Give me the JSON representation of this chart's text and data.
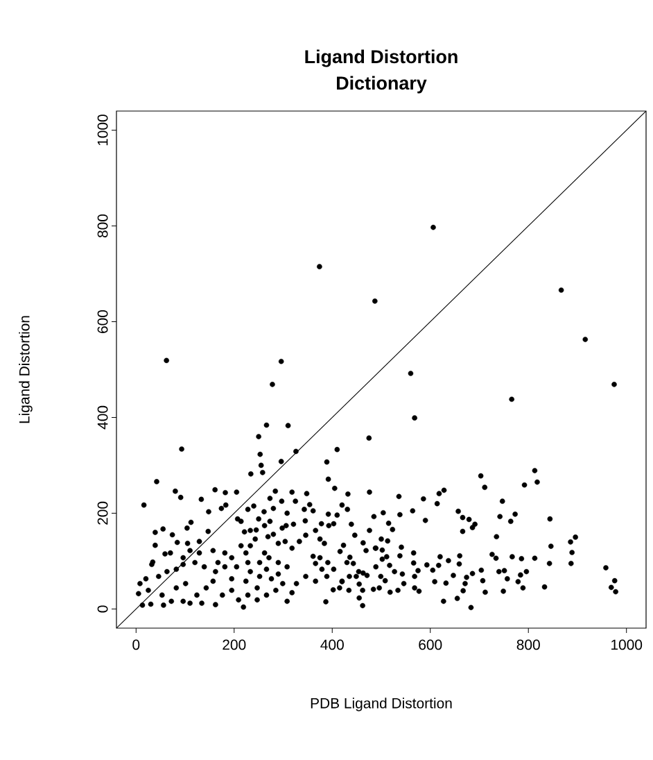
{
  "chart_data": {
    "type": "scatter",
    "title": "Ligand Distortion",
    "subtitle": "Dictionary",
    "xlabel": "PDB Ligand Distortion",
    "ylabel": "Ligand Distortion",
    "xlim": [
      -40,
      1040
    ],
    "ylim": [
      -40,
      1040
    ],
    "xticks": [
      0,
      200,
      400,
      600,
      800,
      1000
    ],
    "yticks": [
      0,
      200,
      400,
      600,
      800,
      1000
    ],
    "marker": "circle",
    "series": [
      {
        "color": "#000000",
        "x": [
          606,
          374,
          487,
          62,
          296,
          867,
          916,
          975,
          278,
          560,
          766,
          568,
          475,
          703,
          711,
          813,
          818,
          792,
          747,
          742,
          773,
          764,
          844,
          735,
          896,
          886,
          846,
          889,
          887,
          843,
          813,
          786,
          767,
          726,
          734,
          796,
          784,
          779,
          789,
          757,
          751,
          740,
          749,
          833,
          958,
          976,
          969,
          978,
          712,
          707,
          704,
          683,
          686,
          674,
          671,
          667,
          655,
          627,
          632,
          609,
          647,
          659,
          660,
          637,
          620,
          617,
          605,
          593,
          657,
          666,
          679,
          691,
          686,
          666,
          614,
          618,
          628,
          590,
          586,
          564,
          536,
          538,
          476,
          432,
          405,
          410,
          566,
          566,
          575,
          568,
          568,
          577,
          543,
          546,
          534,
          518,
          508,
          527,
          538,
          541,
          517,
          511,
          502,
          502,
          500,
          513,
          523,
          515,
          504,
          485,
          476,
          463,
          469,
          489,
          499,
          496,
          484,
          462,
          455,
          462,
          434,
          455,
          439,
          446,
          420,
          431,
          423,
          416,
          436,
          430,
          443,
          463,
          471,
          449,
          435,
          420,
          454,
          489,
          266,
          310,
          250,
          93,
          253,
          255,
          258,
          234,
          296,
          326,
          389,
          392,
          42,
          16,
          80,
          91,
          133,
          161,
          182,
          205,
          174,
          183,
          148,
          112,
          104,
          55,
          39,
          39,
          74,
          84,
          105,
          129,
          147,
          34,
          32,
          59,
          70,
          8,
          5,
          13,
          30,
          56,
          72,
          53,
          25,
          20,
          46,
          63,
          82,
          96,
          96,
          110,
          129,
          120,
          139,
          101,
          82,
          96,
          110,
          134,
          124,
          143,
          157,
          162,
          176,
          162,
          181,
          167,
          157,
          181,
          195,
          205,
          195,
          195,
          219,
          209,
          228,
          247,
          247,
          224,
          233,
          228,
          224,
          214,
          233,
          243,
          221,
          233,
          245,
          214,
          207,
          228,
          240,
          250,
          261,
          273,
          284,
          297,
          280,
          308,
          318,
          325,
          348,
          354,
          361,
          343,
          345,
          321,
          306,
          298,
          273,
          262,
          269,
          280,
          290,
          304,
          318,
          333,
          346,
          366,
          378,
          392,
          410,
          403,
          393,
          375,
          384,
          361,
          375,
          366,
          391,
          403,
          379,
          389,
          366,
          346,
          327,
          318,
          308,
          299,
          285,
          266,
          276,
          290,
          308,
          290,
          271,
          262,
          252,
          266,
          252,
          387,
          402,
          415,
          420,
          488
        ],
        "values": [
          797,
          715,
          643,
          519,
          517,
          666,
          563,
          469,
          469,
          492,
          438,
          399,
          357,
          278,
          254,
          289,
          265,
          259,
          225,
          193,
          198,
          183,
          188,
          151,
          150,
          140,
          131,
          118,
          95,
          95,
          106,
          105,
          109,
          114,
          106,
          78,
          71,
          57,
          44,
          63,
          80,
          78,
          37,
          46,
          86,
          59,
          45,
          36,
          35,
          59,
          81,
          3,
          74,
          66,
          53,
          38,
          22,
          16,
          54,
          57,
          70,
          94,
          111,
          101,
          109,
          91,
          81,
          92,
          204,
          191,
          187,
          177,
          170,
          162,
          220,
          241,
          248,
          185,
          230,
          205,
          235,
          197,
          244,
          240,
          252,
          333,
          117,
          96,
          80,
          68,
          44,
          37,
          73,
          53,
          39,
          35,
          59,
          78,
          111,
          129,
          91,
          109,
          104,
          123,
          146,
          142,
          166,
          179,
          201,
          193,
          164,
          138,
          122,
          88,
          68,
          44,
          41,
          7,
          23,
          39,
          39,
          52,
          177,
          154,
          217,
          208,
          133,
          120,
          108,
          97,
          95,
          75,
          70,
          68,
          68,
          57,
          78,
          127,
          384,
          383,
          360,
          334,
          323,
          300,
          285,
          282,
          308,
          329,
          307,
          271,
          266,
          217,
          246,
          233,
          229,
          249,
          243,
          244,
          210,
          217,
          203,
          181,
          169,
          167,
          160,
          133,
          155,
          139,
          137,
          141,
          162,
          98,
          93,
          115,
          117,
          53,
          32,
          8,
          10,
          8,
          16,
          29,
          39,
          63,
          68,
          78,
          83,
          93,
          107,
          122,
          117,
          97,
          88,
          53,
          44,
          16,
          12,
          12,
          29,
          44,
          58,
          9,
          29,
          78,
          88,
          97,
          122,
          117,
          107,
          88,
          63,
          39,
          4,
          19,
          29,
          19,
          44,
          58,
          78,
          97,
          117,
          132,
          132,
          146,
          161,
          164,
          165,
          183,
          188,
          208,
          215,
          188,
          203,
          231,
          246,
          225,
          210,
          200,
          244,
          225,
          241,
          218,
          205,
          208,
          184,
          177,
          174,
          169,
          183,
          174,
          151,
          156,
          137,
          141,
          127,
          141,
          154,
          164,
          178,
          198,
          196,
          178,
          174,
          146,
          137,
          110,
          107,
          95,
          97,
          83,
          83,
          68,
          58,
          68,
          53,
          34,
          16,
          53,
          39,
          29,
          63,
          73,
          88,
          97,
          107,
          117,
          97,
          83,
          68,
          15,
          40,
          44,
          58,
          127
        ]
      },
      {
        "type": "line",
        "marker": "none",
        "color": "#000000",
        "x": [
          -40,
          1040
        ],
        "values": [
          -40,
          1040
        ]
      }
    ]
  }
}
